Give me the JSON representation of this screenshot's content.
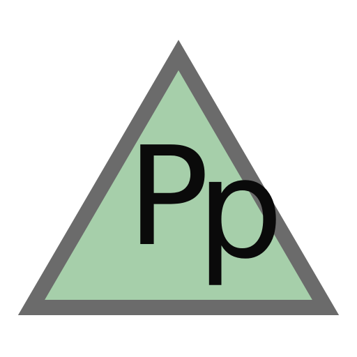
{
  "icon": {
    "name": "triangle-letter-icon",
    "letters": {
      "upper": "P",
      "lower": "p"
    },
    "colors": {
      "background": "#ffffff",
      "fill": "#a6cfaa",
      "stroke": "#6b6b6b",
      "text": "#0a0a0a"
    }
  }
}
